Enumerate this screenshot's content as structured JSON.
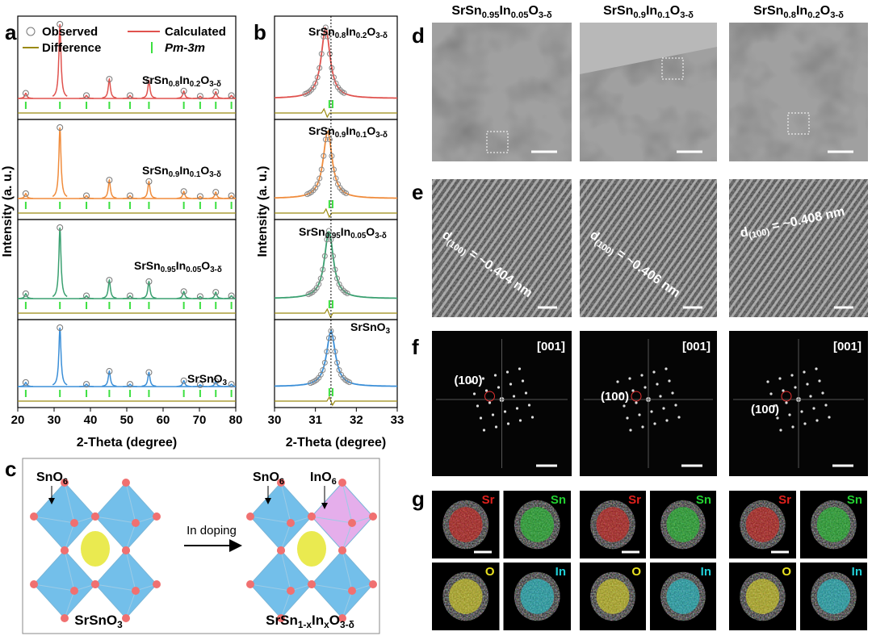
{
  "panel_labels": [
    "a",
    "b",
    "c",
    "d",
    "e",
    "f",
    "g"
  ],
  "xrd": {
    "legend": {
      "observed": "Observed",
      "calculated": "Calculated",
      "difference": "Difference",
      "phase": "Pm-3m"
    },
    "full": {
      "xlabel": "2-Theta (degree)",
      "ylabel": "Intensity (a. u.)",
      "xlim": [
        20,
        80
      ],
      "xticks": [
        20,
        30,
        40,
        50,
        60,
        70,
        80
      ],
      "reflections": [
        22.2,
        31.6,
        38.9,
        45.2,
        50.9,
        56.1,
        65.7,
        70.2,
        74.5,
        78.8
      ]
    },
    "zoom": {
      "xlabel": "2-Theta (degree)",
      "ylabel": "Intensity (a. u.)",
      "xlim": [
        30,
        33
      ],
      "xticks": [
        30,
        31,
        32,
        33
      ],
      "reference_line": 31.38,
      "reflections": [
        31.34,
        31.42
      ]
    },
    "samples": [
      {
        "formula": [
          "SrSn",
          "0.8",
          "In",
          "0.2",
          "O",
          "3-δ"
        ],
        "color": "#e0524e",
        "intensities": [
          7,
          100,
          4,
          26,
          4,
          24,
          10,
          3,
          9,
          4
        ],
        "zoom_peak": 31.25
      },
      {
        "formula": [
          "SrSn",
          "0.9",
          "In",
          "0.1",
          "O",
          "3-δ"
        ],
        "color": "#f08c3c",
        "intensities": [
          7,
          100,
          4,
          26,
          4,
          24,
          10,
          3,
          9,
          4
        ],
        "zoom_peak": 31.3
      },
      {
        "formula": [
          "SrSn",
          "0.95",
          "In",
          "0.05",
          "O",
          "3-δ"
        ],
        "color": "#3aa070",
        "intensities": [
          7,
          100,
          4,
          26,
          4,
          24,
          10,
          3,
          9,
          4
        ],
        "zoom_peak": 31.33
      },
      {
        "formula": [
          "SrSnO",
          "3"
        ],
        "color": "#3b8fd8",
        "intensities": [
          7,
          100,
          4,
          26,
          4,
          24,
          10,
          3,
          9,
          4
        ],
        "zoom_peak": 31.38
      }
    ]
  },
  "structure": {
    "sno6": [
      "SnO",
      "6"
    ],
    "ino6": [
      "InO",
      "6"
    ],
    "arrow": "In doping",
    "parent": [
      "SrSnO",
      "3"
    ],
    "doped": [
      "SrSn",
      "1-x",
      "In",
      "x",
      "O",
      "3-δ"
    ]
  },
  "tem": {
    "columns": [
      [
        "SrSn",
        "0.95",
        "In",
        "0.05",
        "O",
        "3-δ"
      ],
      [
        "SrSn",
        "0.9",
        "In",
        "0.1",
        "O",
        "3-δ"
      ],
      [
        "SrSn",
        "0.8",
        "In",
        "0.2",
        "O",
        "3-δ"
      ]
    ],
    "d_spacings": [
      [
        "d",
        "(100)",
        " = ~0.404 nm"
      ],
      [
        "d",
        "(100)",
        " = ~0.406 nm"
      ],
      [
        "d",
        "(100)",
        " = ~0.408 nm"
      ]
    ],
    "zone_axis": "[001]",
    "spot": "(100)",
    "elements": [
      {
        "name": "Sr",
        "color": "#e0201c"
      },
      {
        "name": "Sn",
        "color": "#22d030"
      },
      {
        "name": "O",
        "color": "#e8e020"
      },
      {
        "name": "In",
        "color": "#20d0d8"
      }
    ]
  }
}
